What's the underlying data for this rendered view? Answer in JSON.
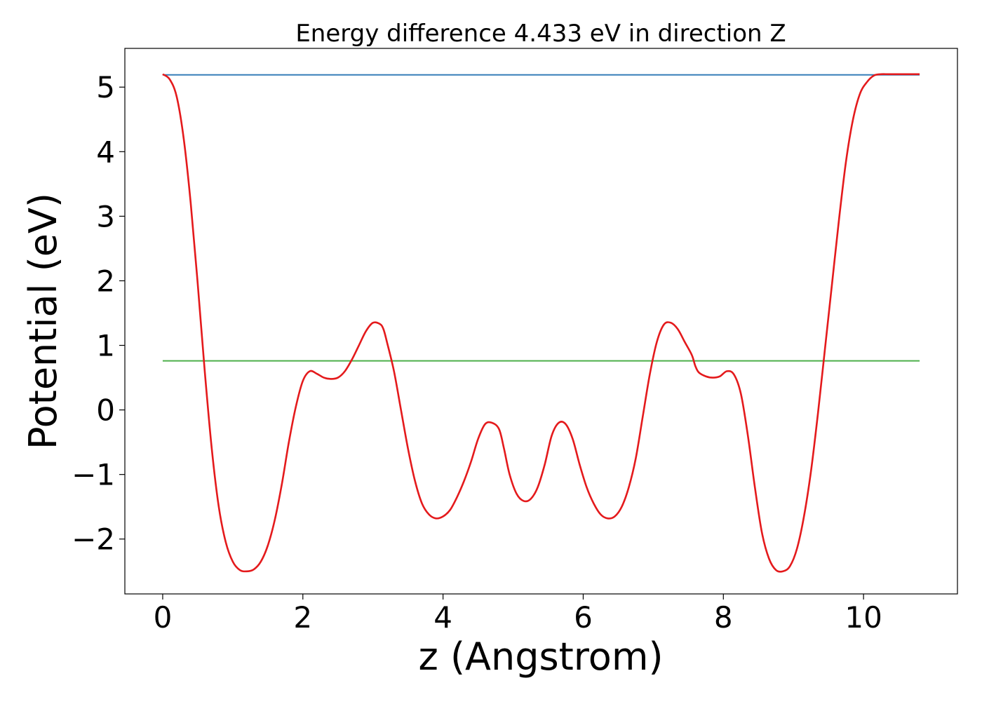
{
  "chart_data": {
    "type": "line",
    "title": "Energy difference 4.433 eV in direction Z",
    "xlabel": "z (Angstrom)",
    "ylabel": "Potential (eV)",
    "xlim": [
      -0.54,
      11.34
    ],
    "ylim": [
      -2.85,
      5.6
    ],
    "xticks": [
      0,
      2,
      4,
      6,
      8,
      10
    ],
    "xtick_labels": [
      "0",
      "2",
      "4",
      "6",
      "8",
      "10"
    ],
    "yticks": [
      -2,
      -1,
      0,
      1,
      2,
      3,
      4,
      5
    ],
    "ytick_labels": [
      "−2",
      "−1",
      "0",
      "1",
      "2",
      "3",
      "4",
      "5"
    ],
    "grid": false,
    "legend": "none",
    "series": [
      {
        "color": "#e41a1c",
        "x": [
          0,
          0.1,
          0.2,
          0.3,
          0.4,
          0.5,
          0.6,
          0.7,
          0.8,
          0.9,
          1.0,
          1.1,
          1.2,
          1.3,
          1.4,
          1.5,
          1.6,
          1.7,
          1.8,
          1.9,
          2.0,
          2.1,
          2.2,
          2.3,
          2.4,
          2.5,
          2.6,
          2.7,
          2.8,
          2.9,
          3.0,
          3.1,
          3.15,
          3.2,
          3.3,
          3.4,
          3.5,
          3.6,
          3.7,
          3.8,
          3.9,
          4.0,
          4.1,
          4.2,
          4.3,
          4.4,
          4.5,
          4.6,
          4.7,
          4.8,
          4.87,
          4.95,
          5.05,
          5.15,
          5.25,
          5.35,
          5.45,
          5.55,
          5.65,
          5.75,
          5.85,
          5.95,
          6.05,
          6.15,
          6.25,
          6.35,
          6.45,
          6.55,
          6.65,
          6.75,
          6.85,
          6.95,
          7.05,
          7.15,
          7.25,
          7.35,
          7.45,
          7.55,
          7.6,
          7.65,
          7.75,
          7.85,
          7.95,
          8.05,
          8.15,
          8.25,
          8.35,
          8.45,
          8.55,
          8.65,
          8.75,
          8.85,
          8.95,
          9.05,
          9.15,
          9.25,
          9.35,
          9.45,
          9.55,
          9.65,
          9.75,
          9.85,
          9.95,
          10.05,
          10.15,
          10.25,
          10.35,
          10.45,
          10.55,
          10.65,
          10.75,
          10.8
        ],
        "y": [
          5.2,
          5.12,
          4.85,
          4.2,
          3.2,
          1.95,
          0.6,
          -0.6,
          -1.5,
          -2.05,
          -2.35,
          -2.48,
          -2.5,
          -2.47,
          -2.35,
          -2.1,
          -1.7,
          -1.15,
          -0.5,
          0.05,
          0.45,
          0.6,
          0.56,
          0.5,
          0.48,
          0.5,
          0.6,
          0.78,
          1.0,
          1.22,
          1.35,
          1.33,
          1.25,
          1.05,
          0.6,
          0.0,
          -0.6,
          -1.1,
          -1.45,
          -1.62,
          -1.68,
          -1.65,
          -1.55,
          -1.35,
          -1.1,
          -0.8,
          -0.45,
          -0.22,
          -0.2,
          -0.3,
          -0.6,
          -1.0,
          -1.3,
          -1.41,
          -1.38,
          -1.2,
          -0.85,
          -0.4,
          -0.2,
          -0.22,
          -0.45,
          -0.85,
          -1.2,
          -1.45,
          -1.62,
          -1.68,
          -1.65,
          -1.5,
          -1.2,
          -0.75,
          -0.1,
          0.55,
          1.05,
          1.32,
          1.35,
          1.25,
          1.05,
          0.85,
          0.68,
          0.58,
          0.52,
          0.5,
          0.52,
          0.6,
          0.55,
          0.25,
          -0.4,
          -1.2,
          -1.9,
          -2.3,
          -2.48,
          -2.5,
          -2.42,
          -2.15,
          -1.65,
          -0.95,
          -0.05,
          0.95,
          1.95,
          2.95,
          3.85,
          4.5,
          4.9,
          5.08,
          5.18,
          5.2,
          5.2,
          5.2,
          5.2,
          5.2,
          5.2,
          5.2
        ],
        "smooth": true
      },
      {
        "color": "#377eb8",
        "x": [
          0,
          10.8
        ],
        "y": [
          5.19,
          5.19
        ]
      },
      {
        "color": "#4daf4a",
        "x": [
          0,
          10.8
        ],
        "y": [
          0.76,
          0.76
        ]
      }
    ]
  }
}
